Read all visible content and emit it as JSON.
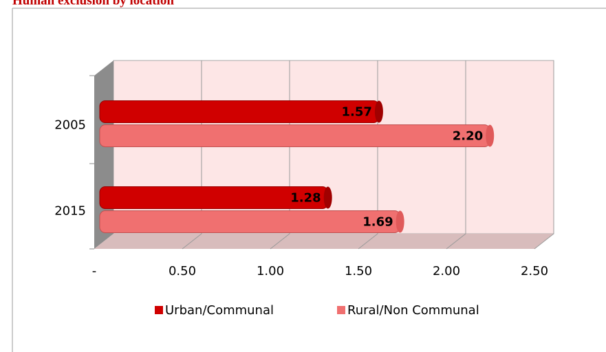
{
  "chart_data": {
    "type": "bar",
    "orientation": "horizontal",
    "title": "Human exclusion by location",
    "categories": [
      "2005",
      "2015"
    ],
    "series": [
      {
        "name": "Urban/Communal",
        "color": "#d00000",
        "values": [
          1.57,
          1.28
        ],
        "value_labels": [
          "1.57",
          "1.28"
        ]
      },
      {
        "name": "Rural/Non Communal",
        "color": "#f07070",
        "values": [
          2.2,
          1.69
        ],
        "value_labels": [
          "2.20",
          "1.69"
        ]
      }
    ],
    "xlim": [
      0,
      2.5
    ],
    "xticks": [
      {
        "value": 0,
        "label": "-"
      },
      {
        "value": 0.5,
        "label": "0.50"
      },
      {
        "value": 1,
        "label": "1.00"
      },
      {
        "value": 1.5,
        "label": "1.50"
      },
      {
        "value": 2,
        "label": "2.00"
      },
      {
        "value": 2.5,
        "label": "2.50"
      }
    ],
    "grid": true,
    "legend": "bottom"
  }
}
